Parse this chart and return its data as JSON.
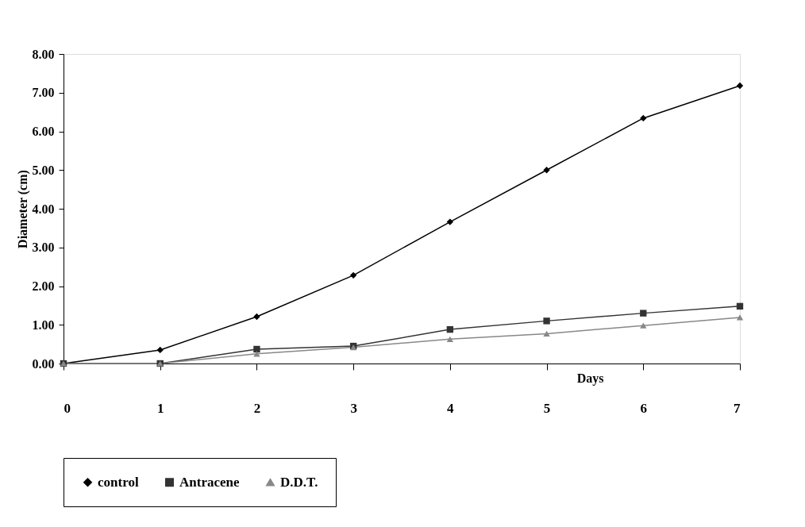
{
  "chart_data": {
    "type": "line",
    "xlabel": "Days",
    "ylabel": "Diameter (cm)",
    "x": [
      0,
      1,
      2,
      3,
      4,
      5,
      6,
      7
    ],
    "series": [
      {
        "name": "control",
        "color": "#000000",
        "marker": "diamond",
        "values": [
          0.0,
          0.35,
          1.21,
          2.28,
          3.66,
          5.0,
          6.34,
          7.18
        ]
      },
      {
        "name": "Antracene",
        "color": "#333333",
        "marker": "square",
        "values": [
          0.0,
          0.0,
          0.37,
          0.45,
          0.88,
          1.1,
          1.3,
          1.48
        ]
      },
      {
        "name": "D.D.T.",
        "color": "#888888",
        "marker": "triangle",
        "values": [
          0.0,
          0.0,
          0.25,
          0.42,
          0.63,
          0.77,
          0.98,
          1.19
        ]
      }
    ],
    "xlim": [
      0,
      7
    ],
    "xticks": [
      0,
      1,
      2,
      3,
      4,
      5,
      6,
      7
    ],
    "ylim": [
      0,
      8
    ],
    "yticks": [
      {
        "value": 0,
        "label": "0.00"
      },
      {
        "value": 1,
        "label": "1.00"
      },
      {
        "value": 2,
        "label": "2.00"
      },
      {
        "value": 3,
        "label": "3.00"
      },
      {
        "value": 4,
        "label": "4.00"
      },
      {
        "value": 5,
        "label": "5.00"
      },
      {
        "value": 6,
        "label": "6.00"
      },
      {
        "value": 7,
        "label": "7.00"
      },
      {
        "value": 8,
        "label": "8.00"
      }
    ],
    "grid": false,
    "legend": "bottom",
    "line_style": "solid"
  }
}
